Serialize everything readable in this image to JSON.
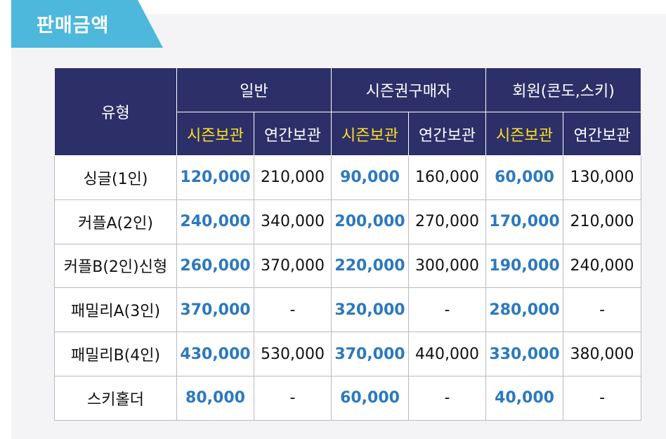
{
  "title": "판매금액",
  "table": {
    "type_header": "유형",
    "groups": [
      "일반",
      "시즌권구매자",
      "회원(콘도,스키)"
    ],
    "sub_headers": [
      "시즌보관",
      "연간보관",
      "시즌보관",
      "연간보관",
      "시즌보관",
      "연간보관"
    ],
    "rows": [
      {
        "type": "싱글(1인)",
        "values": [
          "120,000",
          "210,000",
          "90,000",
          "160,000",
          "60,000",
          "130,000"
        ]
      },
      {
        "type": "커플A(2인)",
        "values": [
          "240,000",
          "340,000",
          "200,000",
          "270,000",
          "170,000",
          "210,000"
        ]
      },
      {
        "type": "커플B(2인)신형",
        "values": [
          "260,000",
          "370,000",
          "220,000",
          "300,000",
          "190,000",
          "240,000"
        ]
      },
      {
        "type": "패밀리A(3인)",
        "values": [
          "370,000",
          "-",
          "320,000",
          "-",
          "280,000",
          "-"
        ]
      },
      {
        "type": "패밀리B(4인)",
        "values": [
          "430,000",
          "530,000",
          "370,000",
          "440,000",
          "330,000",
          "380,000"
        ]
      },
      {
        "type": "스키홀더",
        "values": [
          "80,000",
          "-",
          "60,000",
          "-",
          "40,000",
          "-"
        ]
      }
    ]
  },
  "colors": {
    "header_bg": "#2d2f68",
    "season_label": "#ffe321",
    "season_value": "#2c79bd",
    "title_tab": "#4db8dc"
  }
}
